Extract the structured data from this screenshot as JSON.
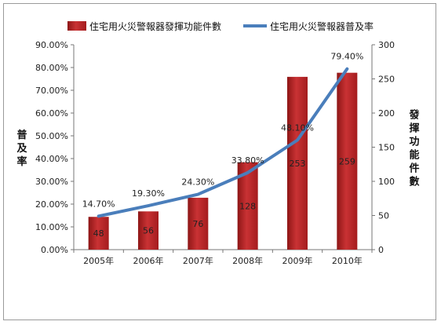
{
  "chart_data": {
    "type": "bar+line",
    "categories": [
      "2005年",
      "2006年",
      "2007年",
      "2008年",
      "2009年",
      "2010年"
    ],
    "series": [
      {
        "name": "住宅用火災警報器發揮功能件數",
        "type": "bar",
        "axis": "right",
        "values": [
          48,
          56,
          76,
          128,
          253,
          259
        ],
        "labels": [
          "48",
          "56",
          "76",
          "128",
          "253",
          "259"
        ]
      },
      {
        "name": "住宅用火災警報器普及率",
        "type": "line",
        "axis": "left",
        "values": [
          14.7,
          19.3,
          24.3,
          33.8,
          48.1,
          79.4
        ],
        "labels": [
          "14.70%",
          "19.30%",
          "24.30%",
          "33.80%",
          "48.10%",
          "79.40%"
        ]
      }
    ],
    "y_left": {
      "label": "普及率",
      "ylim": [
        0,
        90
      ],
      "ticks": [
        "0.00%",
        "10.00%",
        "20.00%",
        "30.00%",
        "40.00%",
        "50.00%",
        "60.00%",
        "70.00%",
        "80.00%",
        "90.00%"
      ]
    },
    "y_right": {
      "label": "發揮功能件數",
      "ylim": [
        0,
        300
      ],
      "ticks": [
        "0",
        "50",
        "100",
        "150",
        "200",
        "250",
        "300"
      ]
    },
    "legend_position": "top",
    "grid": false,
    "colors": {
      "bar": "#c0282a",
      "bar_dark": "#8e1616",
      "line": "#4a7ebb"
    }
  }
}
